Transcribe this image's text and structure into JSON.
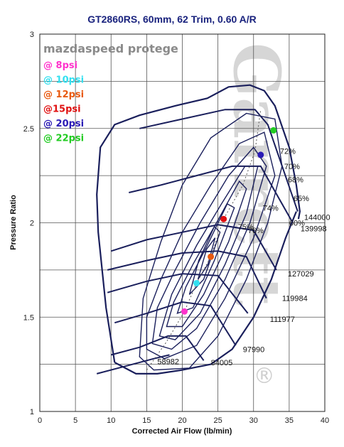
{
  "chart_data": {
    "type": "scatter",
    "title": "GT2860RS, 60mm, 62 Trim, 0.60 A/R",
    "subtitle": "mazdaspeed protege",
    "xlabel": "Corrected Air Flow (lb/min)",
    "ylabel": "Pressure Ratio",
    "xlim": [
      0,
      40
    ],
    "ylim": [
      1,
      3
    ],
    "x_ticks": [
      0,
      5,
      10,
      15,
      20,
      25,
      30,
      35,
      40
    ],
    "y_ticks": [
      1,
      1.5,
      2,
      2.5,
      3
    ],
    "x_tick_labels": [
      "0",
      "5",
      "10",
      "15",
      "20",
      "25",
      "30",
      "35",
      "40"
    ],
    "y_tick_labels": [
      "1",
      "1.5",
      "2",
      "2.5",
      "3"
    ],
    "grid": true,
    "legend_position": "top-left",
    "series": [
      {
        "name": "@ 8psi",
        "color": "#ff33cc",
        "x": [
          20.3
        ],
        "y": [
          1.53
        ]
      },
      {
        "name": "@ 10psi",
        "color": "#33e0f0",
        "x": [
          22.0
        ],
        "y": [
          1.68
        ]
      },
      {
        "name": "@ 12psi",
        "color": "#e85a10",
        "x": [
          24.0
        ],
        "y": [
          1.82
        ]
      },
      {
        "name": "@15psi",
        "color": "#e01010",
        "x": [
          25.8
        ],
        "y": [
          2.02
        ]
      },
      {
        "name": "@ 20psi",
        "color": "#2a1ab5",
        "x": [
          31.0
        ],
        "y": [
          2.36
        ]
      },
      {
        "name": "@ 22psi",
        "color": "#22cc22",
        "x": [
          32.8
        ],
        "y": [
          2.49
        ]
      }
    ],
    "speed_lines": [
      {
        "label": "58982",
        "points": [
          [
            8.0,
            1.2
          ],
          [
            12,
            1.24
          ],
          [
            16,
            1.28
          ],
          [
            18.2,
            1.3
          ]
        ]
      },
      {
        "label": "84005",
        "points": [
          [
            10.0,
            1.3
          ],
          [
            14,
            1.34
          ],
          [
            18,
            1.4
          ],
          [
            20.5,
            1.4
          ],
          [
            23.0,
            1.27
          ]
        ]
      },
      {
        "label": "97990",
        "points": [
          [
            10.5,
            1.47
          ],
          [
            15,
            1.52
          ],
          [
            20,
            1.58
          ],
          [
            24,
            1.56
          ],
          [
            27.5,
            1.35
          ]
        ]
      },
      {
        "label": "111977",
        "points": [
          [
            9.5,
            1.63
          ],
          [
            15,
            1.69
          ],
          [
            20,
            1.73
          ],
          [
            25,
            1.72
          ],
          [
            29.2,
            1.52
          ]
        ]
      },
      {
        "label": "119984",
        "points": [
          [
            9.5,
            1.75
          ],
          [
            15,
            1.8
          ],
          [
            20,
            1.84
          ],
          [
            25,
            1.85
          ],
          [
            29,
            1.82
          ],
          [
            31.8,
            1.6
          ]
        ]
      },
      {
        "label": "127029",
        "points": [
          [
            10,
            1.85
          ],
          [
            15,
            1.91
          ],
          [
            20,
            1.95
          ],
          [
            25,
            1.99
          ],
          [
            30,
            1.96
          ],
          [
            33.2,
            1.75
          ]
        ]
      },
      {
        "label": "139998",
        "points": [
          [
            12.5,
            2.16
          ],
          [
            17,
            2.2
          ],
          [
            22,
            2.25
          ],
          [
            27,
            2.3
          ],
          [
            31,
            2.3
          ],
          [
            35.5,
            2.0
          ]
        ]
      },
      {
        "label": "144000",
        "points": [
          [
            14,
            2.5
          ],
          [
            20,
            2.55
          ],
          [
            26,
            2.6
          ],
          [
            30.2,
            2.6
          ],
          [
            32,
            2.52
          ],
          [
            36.2,
            2.06
          ]
        ]
      }
    ],
    "efficiency_islands": [
      {
        "label": "60%",
        "points": [
          [
            14,
            1.29
          ],
          [
            16,
            1.22
          ],
          [
            21,
            1.23
          ],
          [
            25,
            1.4
          ],
          [
            29,
            1.7
          ],
          [
            32,
            2.0
          ],
          [
            34,
            2.3
          ],
          [
            33,
            2.55
          ],
          [
            29,
            2.58
          ],
          [
            24,
            2.45
          ],
          [
            20,
            2.2
          ],
          [
            17,
            1.9
          ],
          [
            14.5,
            1.6
          ],
          [
            14,
            1.29
          ]
        ]
      },
      {
        "label": "65%",
        "points": [
          [
            15,
            1.33
          ],
          [
            17.5,
            1.28
          ],
          [
            22,
            1.35
          ],
          [
            26,
            1.6
          ],
          [
            30,
            1.92
          ],
          [
            33,
            2.25
          ],
          [
            31.5,
            2.48
          ],
          [
            28,
            2.42
          ],
          [
            24,
            2.2
          ],
          [
            20,
            1.95
          ],
          [
            17,
            1.7
          ],
          [
            15,
            1.5
          ],
          [
            15,
            1.33
          ]
        ]
      },
      {
        "label": "68%",
        "points": [
          [
            15.8,
            1.36
          ],
          [
            18.5,
            1.33
          ],
          [
            22,
            1.44
          ],
          [
            26,
            1.7
          ],
          [
            29.5,
            2.0
          ],
          [
            31.8,
            2.3
          ],
          [
            30,
            2.4
          ],
          [
            26.5,
            2.25
          ],
          [
            22.5,
            2.0
          ],
          [
            19,
            1.75
          ],
          [
            16.5,
            1.55
          ],
          [
            15.8,
            1.36
          ]
        ]
      },
      {
        "label": "70%",
        "points": [
          [
            16.8,
            1.4
          ],
          [
            19,
            1.38
          ],
          [
            22.5,
            1.52
          ],
          [
            26,
            1.78
          ],
          [
            29,
            2.05
          ],
          [
            30.6,
            2.3
          ],
          [
            28.8,
            2.3
          ],
          [
            25.5,
            2.1
          ],
          [
            22,
            1.88
          ],
          [
            18.5,
            1.62
          ],
          [
            16.8,
            1.4
          ]
        ]
      },
      {
        "label": "72%",
        "points": [
          [
            17.8,
            1.45
          ],
          [
            20,
            1.45
          ],
          [
            23,
            1.62
          ],
          [
            26.5,
            1.9
          ],
          [
            29,
            2.18
          ],
          [
            28,
            2.22
          ],
          [
            24.8,
            2.0
          ],
          [
            21.5,
            1.78
          ],
          [
            18.8,
            1.58
          ],
          [
            17.8,
            1.45
          ]
        ]
      },
      {
        "label": "74%",
        "points": [
          [
            19.3,
            1.52
          ],
          [
            21.5,
            1.55
          ],
          [
            24.5,
            1.8
          ],
          [
            27.3,
            2.08
          ],
          [
            26.3,
            2.1
          ],
          [
            23.5,
            1.88
          ],
          [
            20.5,
            1.66
          ],
          [
            19.3,
            1.52
          ]
        ]
      },
      {
        "label": "75%",
        "points": [
          [
            21,
            1.62
          ],
          [
            23,
            1.7
          ],
          [
            25.3,
            1.95
          ],
          [
            24.5,
            1.98
          ],
          [
            22.3,
            1.8
          ],
          [
            21,
            1.62
          ]
        ]
      },
      {
        "label": "76%",
        "points": [
          [
            22.2,
            1.7
          ],
          [
            23.6,
            1.78
          ],
          [
            24.6,
            1.92
          ],
          [
            23.4,
            1.86
          ],
          [
            22.2,
            1.7
          ]
        ]
      }
    ],
    "surge_line": [
      [
        10.5,
        1.26
      ],
      [
        9.3,
        1.55
      ],
      [
        8.2,
        1.95
      ],
      [
        8.0,
        2.15
      ],
      [
        8.5,
        2.4
      ],
      [
        10.5,
        2.52
      ],
      [
        14,
        2.57
      ],
      [
        19,
        2.62
      ],
      [
        23.5,
        2.66
      ],
      [
        26.5,
        2.72
      ],
      [
        29.5,
        2.73
      ],
      [
        31.5,
        2.7
      ],
      [
        33,
        2.62
      ],
      [
        35,
        2.4
      ],
      [
        36,
        2.2
      ],
      [
        36.5,
        2.06
      ],
      [
        36.3,
        2.02
      ]
    ],
    "choke_line": [
      [
        10.5,
        1.26
      ],
      [
        13.5,
        1.2
      ],
      [
        16.5,
        1.2
      ],
      [
        20,
        1.22
      ],
      [
        24,
        1.25
      ],
      [
        27,
        1.33
      ],
      [
        30,
        1.5
      ],
      [
        32.5,
        1.7
      ],
      [
        34.5,
        1.92
      ],
      [
        36.0,
        2.06
      ]
    ],
    "op_line": [
      [
        15,
        1.22
      ],
      [
        17.8,
        1.37
      ],
      [
        20.3,
        1.53
      ],
      [
        22.0,
        1.68
      ],
      [
        24.0,
        1.82
      ],
      [
        25.8,
        2.02
      ],
      [
        28.5,
        2.2
      ],
      [
        30.2,
        2.38
      ],
      [
        31,
        2.6
      ]
    ],
    "annotations": [
      {
        "text": "58982",
        "x": 16.5,
        "y": 1.265
      },
      {
        "text": "84005",
        "x": 24.0,
        "y": 1.26
      },
      {
        "text": "97990",
        "x": 28.5,
        "y": 1.33
      },
      {
        "text": "111977",
        "x": 32.3,
        "y": 1.49
      },
      {
        "text": "119984",
        "x": 34.0,
        "y": 1.6
      },
      {
        "text": "127029",
        "x": 34.8,
        "y": 1.73
      },
      {
        "text": "139998",
        "x": 36.6,
        "y": 1.97
      },
      {
        "text": "144000",
        "x": 37.1,
        "y": 2.03
      },
      {
        "text": "60%",
        "x": 35.0,
        "y": 2.0
      },
      {
        "text": "65%",
        "x": 35.6,
        "y": 2.13
      },
      {
        "text": "68%",
        "x": 34.8,
        "y": 2.23
      },
      {
        "text": "70%",
        "x": 34.3,
        "y": 2.3
      },
      {
        "text": "72%",
        "x": 33.7,
        "y": 2.38
      },
      {
        "text": "74%",
        "x": 31.3,
        "y": 2.08
      },
      {
        "text": "75%",
        "x": 27.8,
        "y": 1.98
      },
      {
        "text": "76%",
        "x": 29.2,
        "y": 1.96
      }
    ]
  },
  "watermark_text": "Garrett",
  "registered_mark": "®",
  "colors": {
    "curves": "#1a1f5c",
    "grid": "#555555",
    "op_line": "#555555",
    "title": "#1a237e"
  }
}
